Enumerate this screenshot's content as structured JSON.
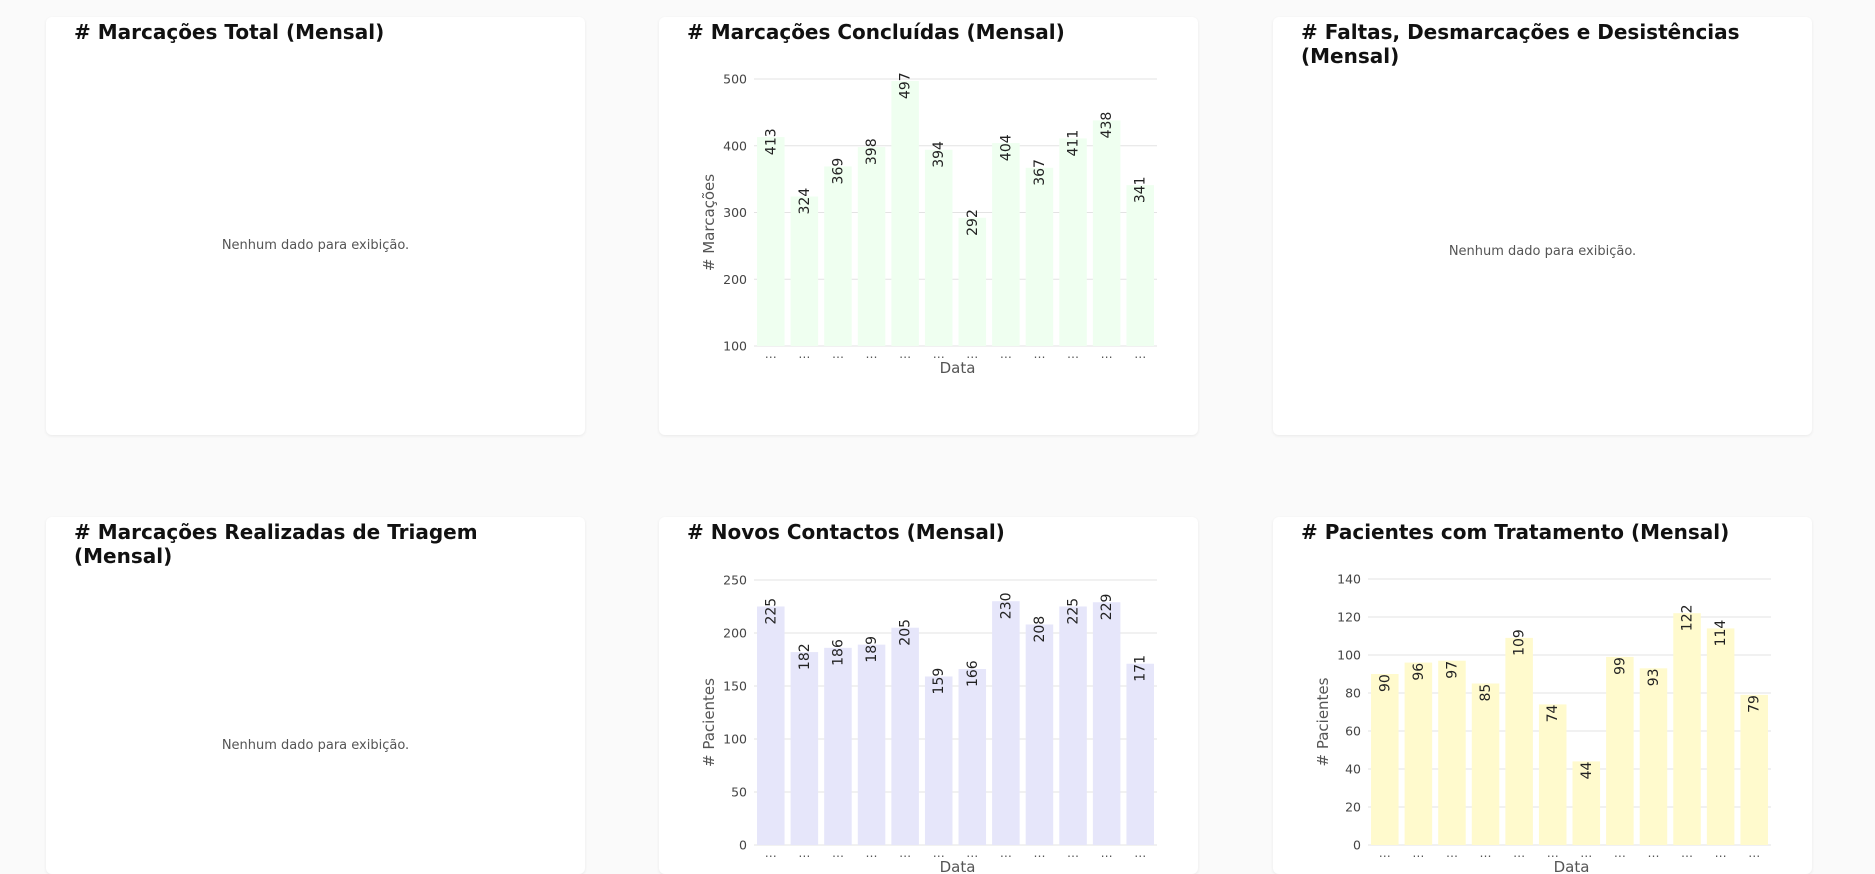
{
  "empty_message": "Nenhum dado para exibição.",
  "cards": [
    {
      "title": "# Marcações Total (Mensal)"
    },
    {
      "title": "# Marcações Concluídas (Mensal)"
    },
    {
      "title": "# Faltas, Desmarcações e Desistências (Mensal)"
    },
    {
      "title": "# Marcações Realizadas de Triagem (Mensal)"
    },
    {
      "title": "# Novos Contactos (Mensal)"
    },
    {
      "title": "# Pacientes com Tratamento (Mensal)"
    }
  ],
  "chart_data": [
    {
      "type": "bar",
      "title": "# Marcações Concluídas (Mensal)",
      "xlabel": "Data",
      "ylabel": "# Marcações",
      "categories": [
        "⋯",
        "⋯",
        "⋯",
        "⋯",
        "⋯",
        "⋯",
        "⋯",
        "⋯",
        "⋯",
        "⋯",
        "⋯",
        "⋯"
      ],
      "values": [
        413,
        324,
        369,
        398,
        497,
        394,
        292,
        404,
        367,
        411,
        438,
        341
      ],
      "ylim": [
        100,
        500
      ],
      "yticks": [
        100,
        200,
        300,
        400,
        500
      ],
      "bar_color": "#effff0",
      "grid": true
    },
    {
      "type": "bar",
      "title": "# Novos Contactos (Mensal)",
      "xlabel": "Data",
      "ylabel": "# Pacientes",
      "categories": [
        "⋯",
        "⋯",
        "⋯",
        "⋯",
        "⋯",
        "⋯",
        "⋯",
        "⋯",
        "⋯",
        "⋯",
        "⋯",
        "⋯"
      ],
      "values": [
        225,
        182,
        186,
        189,
        205,
        159,
        166,
        230,
        208,
        225,
        229,
        171
      ],
      "ylim": [
        0,
        250
      ],
      "yticks": [
        0,
        50,
        100,
        150,
        200,
        250
      ],
      "bar_color": "#e6e6fa",
      "grid": true
    },
    {
      "type": "bar",
      "title": "# Pacientes com Tratamento (Mensal)",
      "xlabel": "Data",
      "ylabel": "# Pacientes",
      "categories": [
        "⋯",
        "⋯",
        "⋯",
        "⋯",
        "⋯",
        "⋯",
        "⋯",
        "⋯",
        "⋯",
        "⋯",
        "⋯",
        "⋯"
      ],
      "values": [
        90,
        96,
        97,
        85,
        109,
        74,
        44,
        99,
        93,
        122,
        114,
        79
      ],
      "ylim": [
        0,
        140
      ],
      "yticks": [
        0,
        20,
        40,
        60,
        80,
        100,
        120,
        140
      ],
      "bar_color": "#fffacd",
      "grid": true
    }
  ]
}
